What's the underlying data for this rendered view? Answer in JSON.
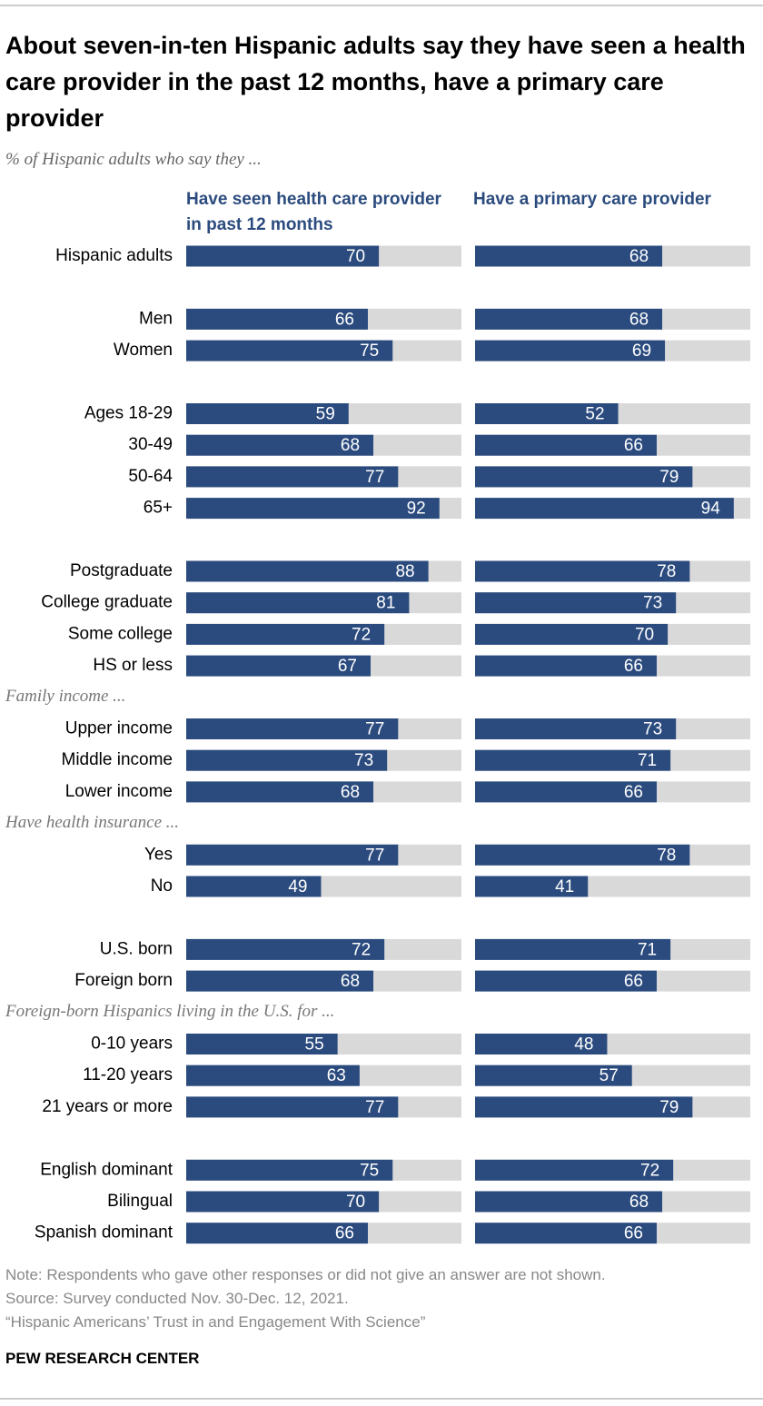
{
  "chart_data": {
    "type": "bar",
    "title": "About seven-in-ten Hispanic adults say they have seen a health care provider in the past 12 months, have a primary care provider",
    "subtitle": "% of Hispanic adults who say they ...",
    "xlim": [
      0,
      100
    ],
    "track_color": "#d9d9d9",
    "series": [
      {
        "name": "Have seen health care provider in past 12 months",
        "color": "#2b4b7e"
      },
      {
        "name": "Have a primary care provider",
        "color": "#2b4b7e"
      }
    ],
    "groups": [
      {
        "categories": [
          "Hispanic adults"
        ],
        "series": [
          {
            "values": [
              70
            ]
          },
          {
            "values": [
              68
            ]
          }
        ]
      },
      {
        "categories": [
          "Men",
          "Women"
        ],
        "series": [
          {
            "values": [
              66,
              75
            ]
          },
          {
            "values": [
              68,
              69
            ]
          }
        ]
      },
      {
        "categories": [
          "Ages 18-29",
          "30-49",
          "50-64",
          "65+"
        ],
        "series": [
          {
            "values": [
              59,
              68,
              77,
              92
            ]
          },
          {
            "values": [
              52,
              66,
              79,
              94
            ]
          }
        ]
      },
      {
        "categories": [
          "Postgraduate",
          "College graduate",
          "Some college",
          "HS or less"
        ],
        "series": [
          {
            "values": [
              88,
              81,
              72,
              67
            ]
          },
          {
            "values": [
              78,
              73,
              70,
              66
            ]
          }
        ]
      },
      {
        "label": "Family income ...",
        "categories": [
          "Upper income",
          "Middle income",
          "Lower income"
        ],
        "series": [
          {
            "values": [
              77,
              73,
              68
            ]
          },
          {
            "values": [
              73,
              71,
              66
            ]
          }
        ]
      },
      {
        "label": "Have health insurance ...",
        "categories": [
          "Yes",
          "No"
        ],
        "series": [
          {
            "values": [
              77,
              49
            ]
          },
          {
            "values": [
              78,
              41
            ]
          }
        ]
      },
      {
        "categories": [
          "U.S. born",
          "Foreign born"
        ],
        "series": [
          {
            "values": [
              72,
              68
            ]
          },
          {
            "values": [
              71,
              66
            ]
          }
        ]
      },
      {
        "label": "Foreign-born Hispanics living in the U.S. for  ...",
        "categories": [
          "0-10 years",
          "11-20 years",
          "21 years or more"
        ],
        "series": [
          {
            "values": [
              55,
              63,
              77
            ]
          },
          {
            "values": [
              48,
              57,
              79
            ]
          }
        ]
      },
      {
        "categories": [
          "English dominant",
          "Bilingual",
          "Spanish dominant"
        ],
        "series": [
          {
            "values": [
              75,
              70,
              66
            ]
          },
          {
            "values": [
              72,
              68,
              66
            ]
          }
        ]
      }
    ],
    "note": "Note: Respondents who gave other responses or did not give an answer are not shown.",
    "source": "Source: Survey conducted Nov. 30-Dec. 12, 2021.",
    "report": "“Hispanic Americans’ Trust in and Engagement With Science”",
    "footer": "PEW RESEARCH CENTER"
  }
}
